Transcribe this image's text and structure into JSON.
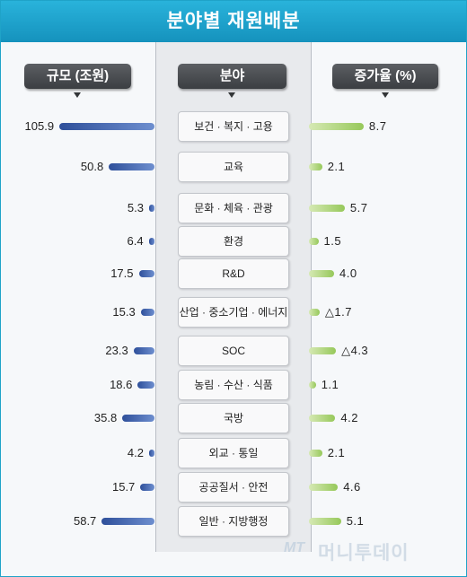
{
  "title": "분야별 재원배분",
  "headers": {
    "size": "규모 (조원)",
    "category": "분야",
    "growth": "증가율 (%)"
  },
  "watermark": {
    "mt": "MT",
    "name": "머니투데이"
  },
  "colors": {
    "title_bg": "#1fa3c8",
    "size_bar": "#3f5fa8",
    "growth_bar": "#96c85a"
  },
  "chart_data": {
    "type": "bar",
    "title": "분야별 재원배분",
    "categories": [
      "보건 · 복지 · 고용",
      "교육",
      "문화 · 체육 · 관광",
      "환경",
      "R&D",
      "산업 · 중소기업 · 에너지",
      "SOC",
      "농림 · 수산 · 식품",
      "국방",
      "외교 · 통일",
      "공공질서 · 안전",
      "일반 · 지방행정"
    ],
    "series": [
      {
        "name": "규모 (조원)",
        "values": [
          105.9,
          50.8,
          5.3,
          6.4,
          17.5,
          15.3,
          23.3,
          18.6,
          35.8,
          4.2,
          15.7,
          58.7
        ],
        "labels": [
          "105.9",
          "50.8",
          "5.3",
          "6.4",
          "17.5",
          "15.3",
          "23.3",
          "18.6",
          "35.8",
          "4.2",
          "15.7",
          "58.7"
        ]
      },
      {
        "name": "증가율 (%)",
        "values": [
          8.7,
          2.1,
          5.7,
          1.5,
          4.0,
          -1.7,
          -4.3,
          1.1,
          4.2,
          2.1,
          4.6,
          5.1
        ],
        "labels": [
          "8.7",
          "2.1",
          "5.7",
          "1.5",
          "4.0",
          "△1.7",
          "△4.3",
          "1.1",
          "4.2",
          "2.1",
          "4.6",
          "5.1"
        ]
      }
    ]
  }
}
